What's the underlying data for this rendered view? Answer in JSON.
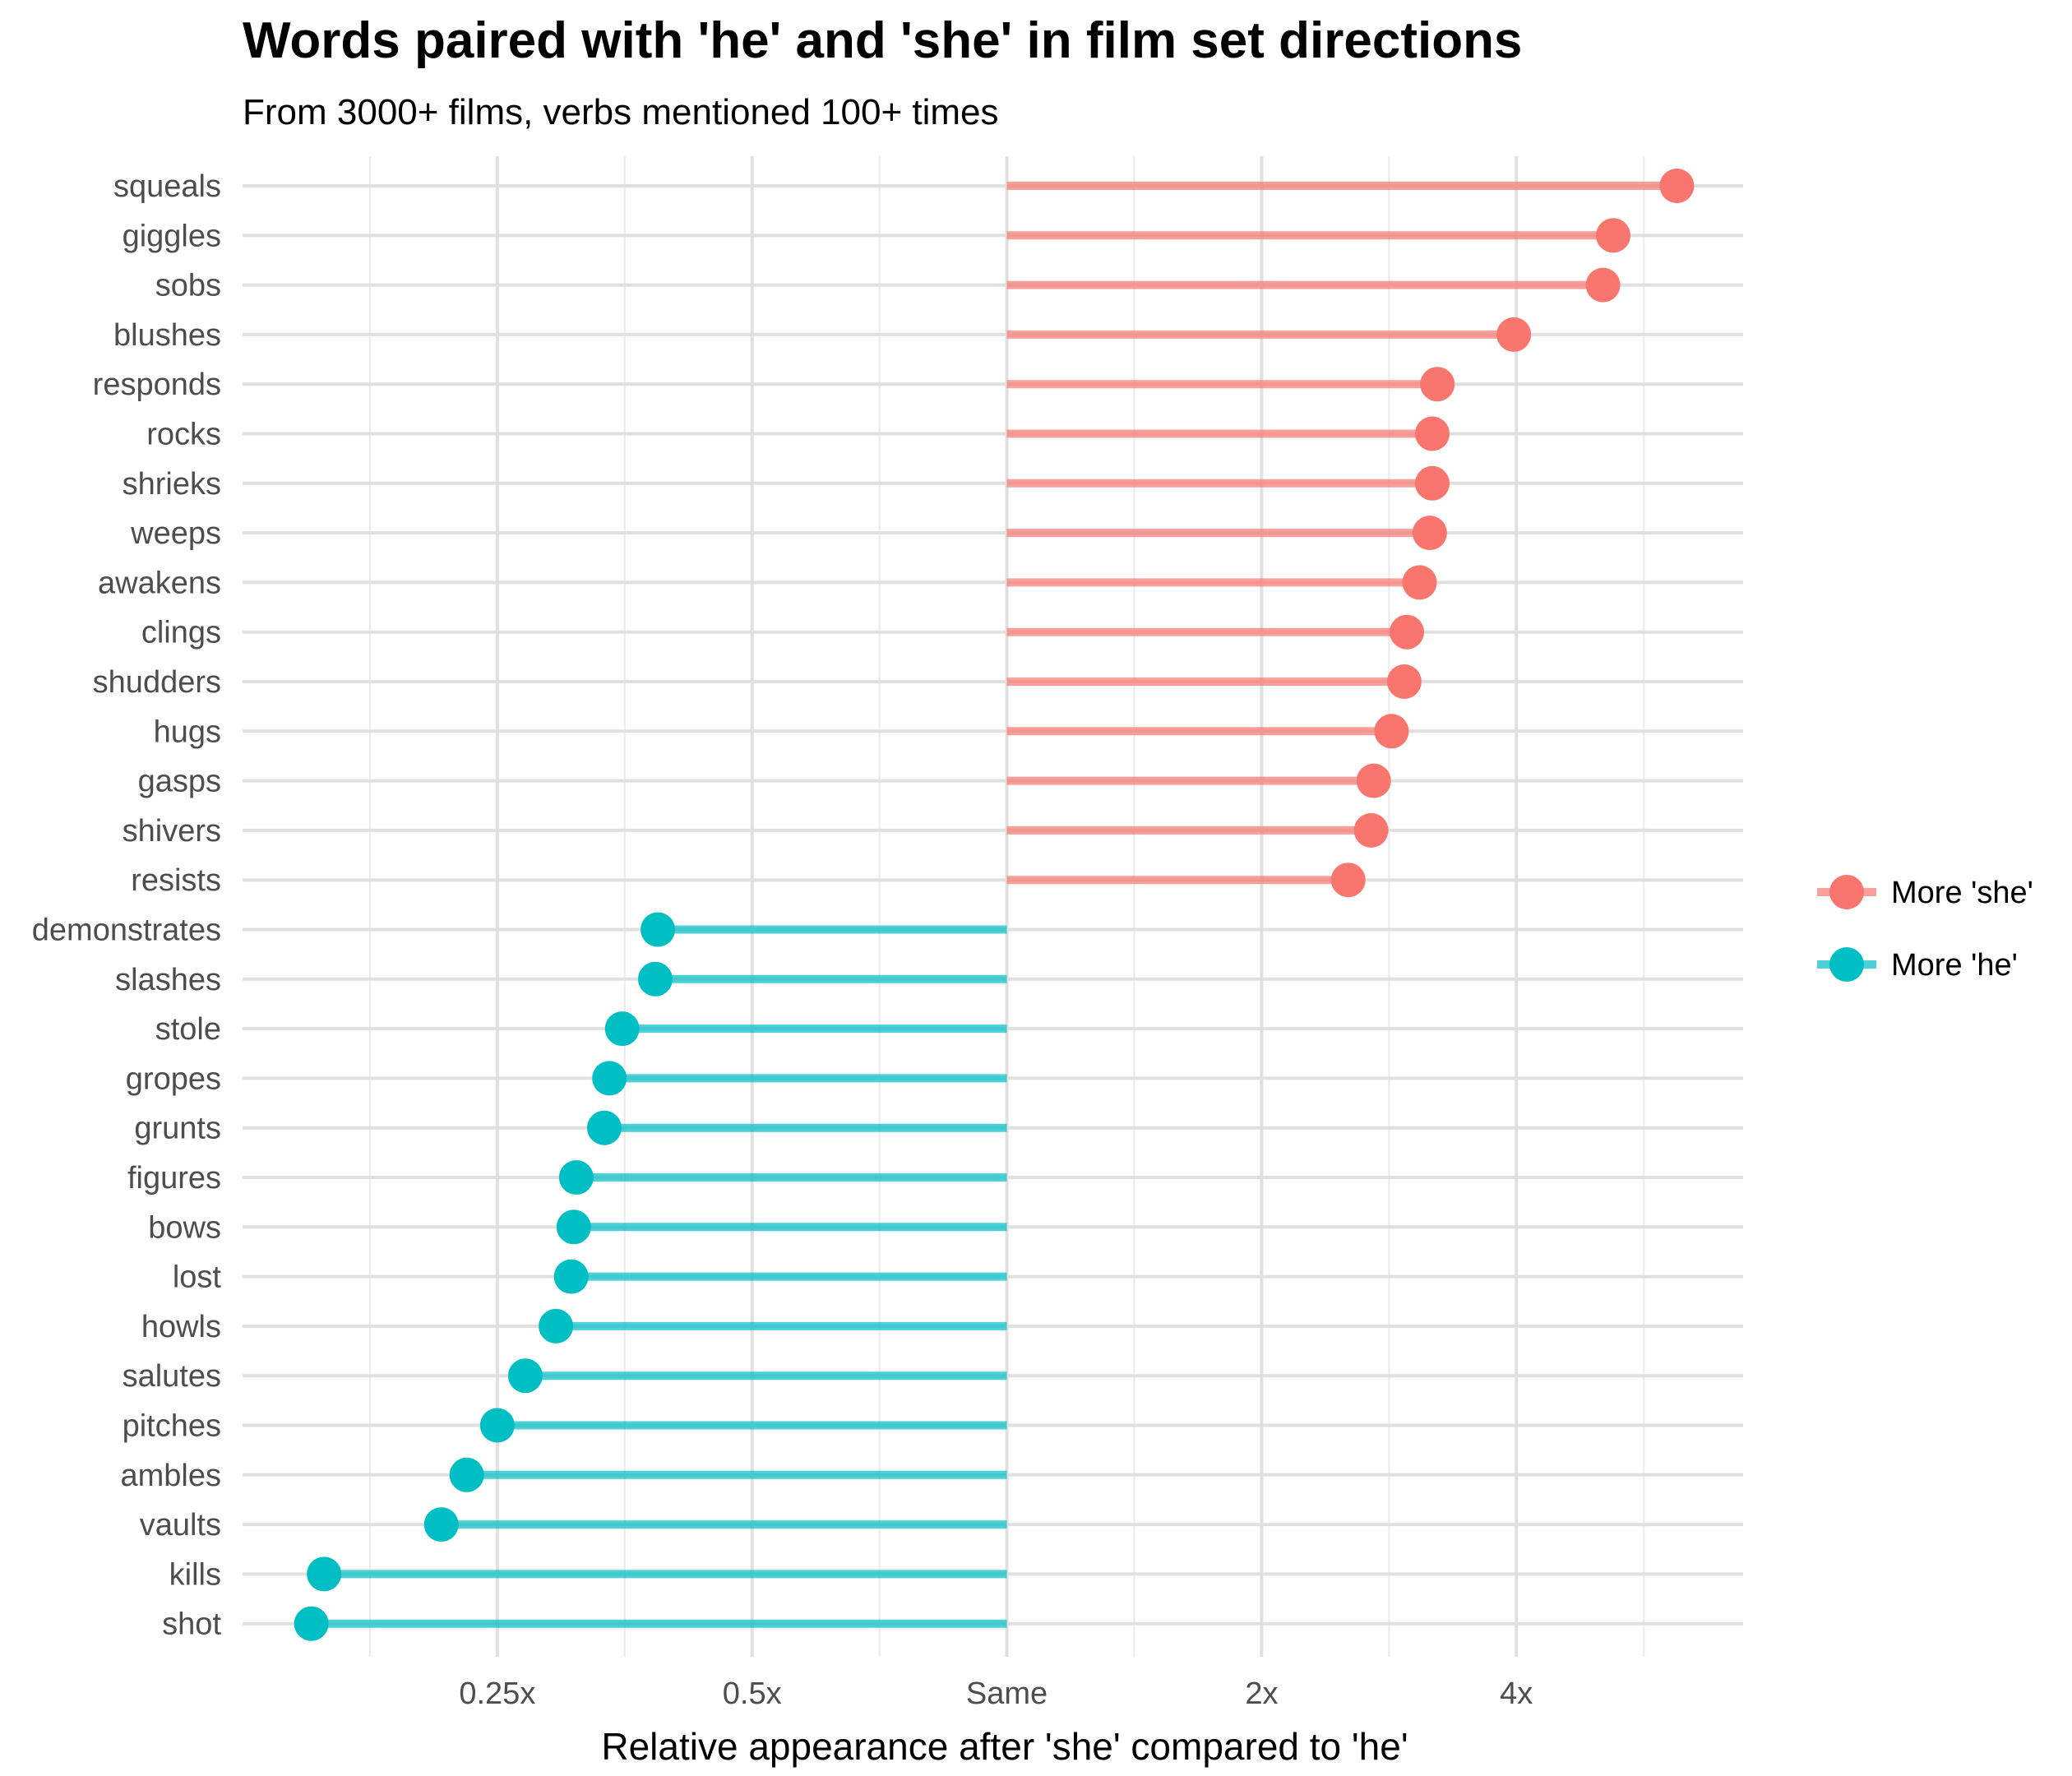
{
  "chart_data": {
    "type": "lollipop",
    "title": "Words paired with 'he' and 'she' in film set directions",
    "subtitle": "From 3000+ films, verbs mentioned 100+ times",
    "xlabel": "Relative appearance after 'she' compared to 'he'",
    "ylabel": "",
    "x_scale": "log2",
    "xlim_log2": [
      -3.0,
      2.89
    ],
    "x_ticks": [
      {
        "log2": -2,
        "label": "0.25x"
      },
      {
        "log2": -1,
        "label": "0.5x"
      },
      {
        "log2": 0,
        "label": "Same"
      },
      {
        "log2": 1,
        "label": "2x"
      },
      {
        "log2": 2,
        "label": "4x"
      }
    ],
    "x_minor_log2": [
      -2.5,
      -1.5,
      -0.5,
      0.5,
      1.5,
      2.5
    ],
    "grid": true,
    "legend_position": "right",
    "series": [
      {
        "name": "More 'she'",
        "color": "#F8766D"
      },
      {
        "name": "More 'he'",
        "color": "#00BFC4"
      }
    ],
    "points": [
      {
        "word": "squeals",
        "log2": 2.63,
        "group": 0
      },
      {
        "word": "giggles",
        "log2": 2.38,
        "group": 0
      },
      {
        "word": "sobs",
        "log2": 2.34,
        "group": 0
      },
      {
        "word": "blushes",
        "log2": 1.99,
        "group": 0
      },
      {
        "word": "responds",
        "log2": 1.69,
        "group": 0
      },
      {
        "word": "rocks",
        "log2": 1.67,
        "group": 0
      },
      {
        "word": "shrieks",
        "log2": 1.67,
        "group": 0
      },
      {
        "word": "weeps",
        "log2": 1.66,
        "group": 0
      },
      {
        "word": "awakens",
        "log2": 1.62,
        "group": 0
      },
      {
        "word": "clings",
        "log2": 1.57,
        "group": 0
      },
      {
        "word": "shudders",
        "log2": 1.56,
        "group": 0
      },
      {
        "word": "hugs",
        "log2": 1.51,
        "group": 0
      },
      {
        "word": "gasps",
        "log2": 1.44,
        "group": 0
      },
      {
        "word": "shivers",
        "log2": 1.43,
        "group": 0
      },
      {
        "word": "resists",
        "log2": 1.34,
        "group": 0
      },
      {
        "word": "demonstrates",
        "log2": -1.37,
        "group": 1
      },
      {
        "word": "slashes",
        "log2": -1.38,
        "group": 1
      },
      {
        "word": "stole",
        "log2": -1.51,
        "group": 1
      },
      {
        "word": "gropes",
        "log2": -1.56,
        "group": 1
      },
      {
        "word": "grunts",
        "log2": -1.58,
        "group": 1
      },
      {
        "word": "figures",
        "log2": -1.69,
        "group": 1
      },
      {
        "word": "bows",
        "log2": -1.7,
        "group": 1
      },
      {
        "word": "lost",
        "log2": -1.71,
        "group": 1
      },
      {
        "word": "howls",
        "log2": -1.77,
        "group": 1
      },
      {
        "word": "salutes",
        "log2": -1.89,
        "group": 1
      },
      {
        "word": "pitches",
        "log2": -2.0,
        "group": 1
      },
      {
        "word": "ambles",
        "log2": -2.12,
        "group": 1
      },
      {
        "word": "vaults",
        "log2": -2.22,
        "group": 1
      },
      {
        "word": "kills",
        "log2": -2.68,
        "group": 1
      },
      {
        "word": "shot",
        "log2": -2.73,
        "group": 1
      }
    ]
  }
}
